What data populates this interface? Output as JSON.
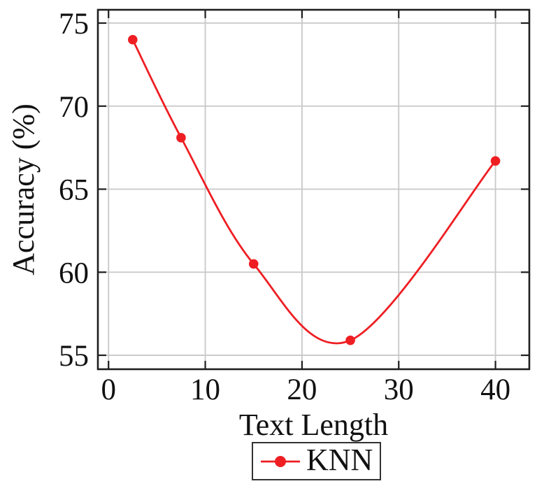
{
  "chart_data": {
    "type": "line",
    "title": "",
    "xlabel": "Text Length",
    "ylabel": "Accuracy (%)",
    "xlim": [
      -1.1,
      43.5
    ],
    "ylim": [
      54.16,
      75.8
    ],
    "xticks": [
      0,
      10,
      20,
      30,
      40
    ],
    "yticks": [
      55,
      60,
      65,
      70,
      75
    ],
    "grid": true,
    "legend_position": "below-chart",
    "series": [
      {
        "name": "KNN",
        "color": "#ee1e23",
        "marker": "filled-circle",
        "smooth": true,
        "x": [
          2.5,
          7.5,
          15,
          25,
          40
        ],
        "y": [
          74.0,
          68.1,
          60.5,
          55.9,
          66.7
        ]
      }
    ]
  },
  "styles": {
    "grid_color": "#c8c8c8",
    "frame_color": "#1f1f1f",
    "text_color": "#111111",
    "background": "#ffffff"
  }
}
